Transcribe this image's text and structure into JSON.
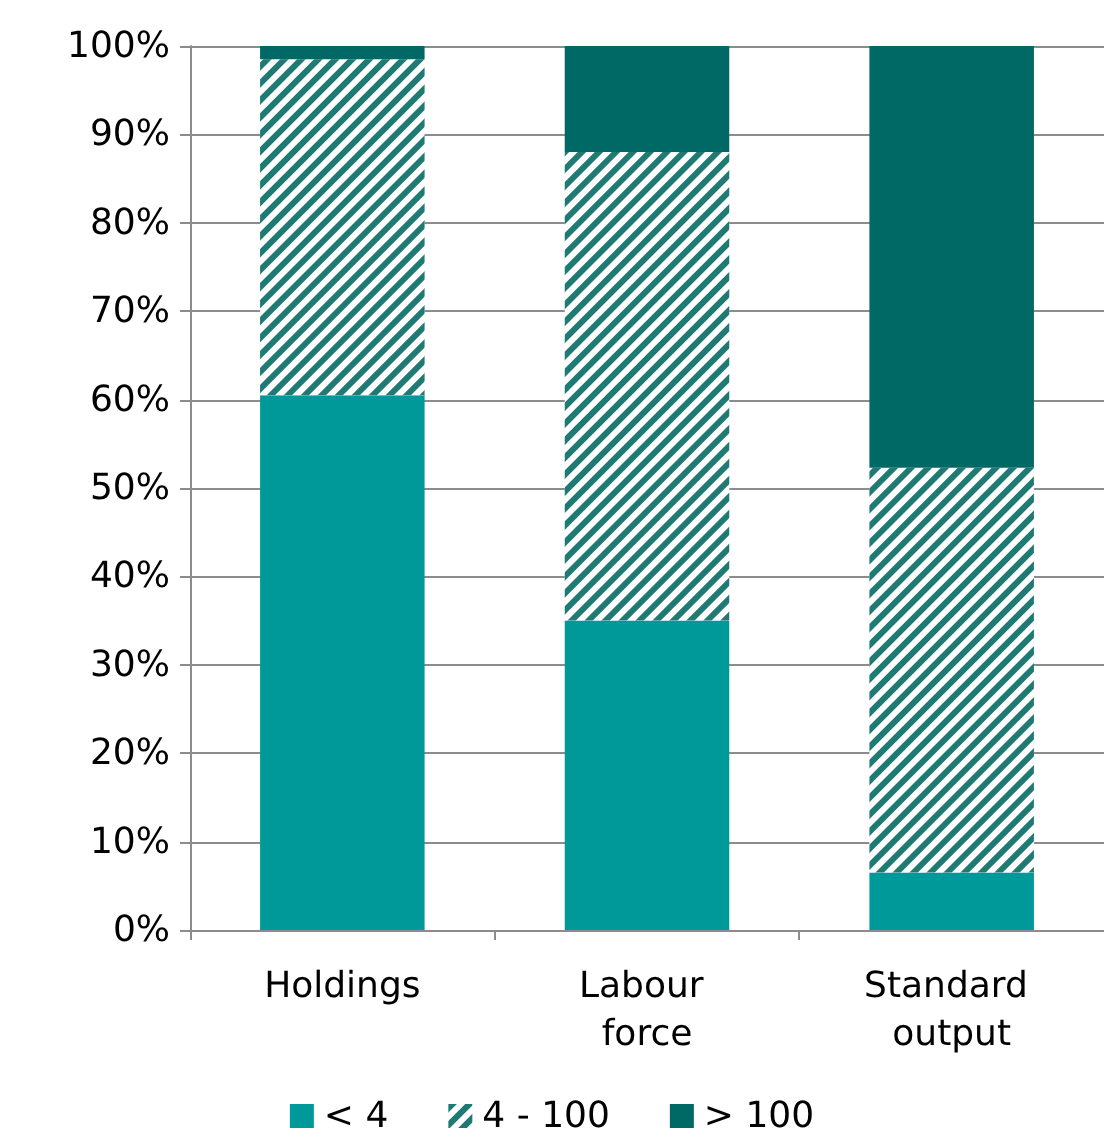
{
  "chart_data": {
    "type": "bar",
    "stacked": true,
    "categories": [
      "Holdings",
      "Labour force",
      "Standard output"
    ],
    "series": [
      {
        "name": "< 4",
        "color": "#009999",
        "values": [
          60.5,
          35,
          6.5
        ]
      },
      {
        "name": "4 - 100",
        "color": "#1f7a74",
        "values": [
          38,
          53,
          45.8
        ]
      },
      {
        "name": "> 100",
        "color": "#006966",
        "values": [
          1.5,
          12,
          47.7
        ]
      }
    ],
    "ylim": [
      0,
      100
    ],
    "yticks": [
      {
        "value": 0,
        "label": "0%"
      },
      {
        "value": 10,
        "label": "10%"
      },
      {
        "value": 20,
        "label": "20%"
      },
      {
        "value": 30,
        "label": "30%"
      },
      {
        "value": 40,
        "label": "40%"
      },
      {
        "value": 50,
        "label": "50%"
      },
      {
        "value": 60,
        "label": "60%"
      },
      {
        "value": 70,
        "label": "70%"
      },
      {
        "value": 80,
        "label": "80%"
      },
      {
        "value": 90,
        "label": "90%"
      },
      {
        "value": 100,
        "label": "100%"
      }
    ],
    "grid": "y",
    "legend": "bottom"
  }
}
